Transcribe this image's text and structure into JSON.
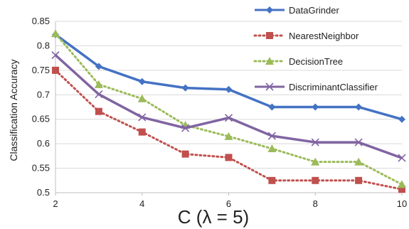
{
  "chart_data": {
    "type": "line",
    "title": "",
    "xlabel": "C (λ = 5)",
    "ylabel": "Classification Accuracy",
    "x": [
      2,
      3,
      4,
      5,
      6,
      7,
      8,
      9,
      10
    ],
    "xlim": [
      2,
      10
    ],
    "ylim": [
      0.5,
      0.85
    ],
    "xticks": [
      "2",
      "4",
      "6",
      "8",
      "10"
    ],
    "yticks": [
      "0.5",
      "0.55",
      "0.6",
      "0.65",
      "0.7",
      "0.75",
      "0.8",
      "0.85"
    ],
    "grid": true,
    "legend_position": "top-right",
    "series": [
      {
        "name": "DataGrinder",
        "color": "#4472c4",
        "marker": "diamond",
        "dash": "solid",
        "values": [
          0.823,
          0.758,
          0.727,
          0.714,
          0.711,
          0.675,
          0.675,
          0.675,
          0.65
        ]
      },
      {
        "name": "NearestNeighbor",
        "color": "#c0504d",
        "marker": "square",
        "dash": "dotted",
        "values": [
          0.75,
          0.666,
          0.624,
          0.579,
          0.572,
          0.525,
          0.525,
          0.525,
          0.507
        ]
      },
      {
        "name": "DecisionTree",
        "color": "#9bbb59",
        "marker": "triangle",
        "dash": "dotted",
        "values": [
          0.825,
          0.721,
          0.692,
          0.638,
          0.615,
          0.59,
          0.563,
          0.563,
          0.517
        ]
      },
      {
        "name": "DiscriminantClassifier",
        "color": "#8064a2",
        "marker": "x",
        "dash": "solid",
        "values": [
          0.781,
          0.701,
          0.654,
          0.632,
          0.653,
          0.616,
          0.603,
          0.603,
          0.571
        ]
      }
    ]
  }
}
